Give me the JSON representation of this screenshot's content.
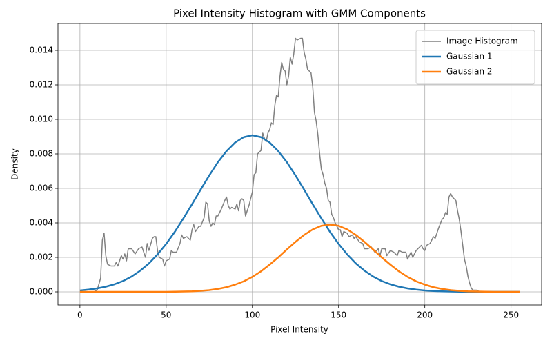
{
  "chart_data": {
    "type": "line",
    "title": "Pixel Intensity Histogram with GMM Components",
    "xlabel": "Pixel Intensity",
    "ylabel": "Density",
    "xlim": [
      -12.75,
      267.75
    ],
    "ylim": [
      -0.00076,
      0.01556
    ],
    "xticks": [
      0,
      50,
      100,
      150,
      200,
      250
    ],
    "yticks": [
      {
        "value": 0,
        "label": "0.000"
      },
      {
        "value": 0.002,
        "label": "0.002"
      },
      {
        "value": 0.004,
        "label": "0.004"
      },
      {
        "value": 0.006,
        "label": "0.006"
      },
      {
        "value": 0.008,
        "label": "0.008"
      },
      {
        "value": 0.01,
        "label": "0.010"
      },
      {
        "value": 0.012,
        "label": "0.012"
      },
      {
        "value": 0.014,
        "label": "0.014"
      }
    ],
    "grid": true,
    "legend": "upper right",
    "series": [
      {
        "name": "Image Histogram",
        "color": "#808080",
        "width": 1.5,
        "x": [
          0,
          8,
          10,
          12,
          13,
          14,
          15,
          16,
          18,
          20,
          21,
          22,
          24,
          25,
          26,
          27,
          28,
          30,
          32,
          34,
          36,
          38,
          39,
          40,
          42,
          43,
          44,
          45,
          46,
          48,
          49,
          50,
          52,
          53,
          54,
          56,
          58,
          59,
          60,
          62,
          64,
          65,
          66,
          67,
          69,
          70,
          72,
          73,
          74,
          75,
          76,
          77,
          78,
          79,
          80,
          82,
          84,
          85,
          86,
          87,
          88,
          90,
          91,
          92,
          93,
          94,
          95,
          96,
          98,
          100,
          101,
          102,
          103,
          104,
          105,
          106,
          107,
          108,
          109,
          110,
          111,
          112,
          113,
          114,
          115,
          116,
          117,
          118,
          119,
          120,
          121,
          122,
          123,
          124,
          125,
          126,
          128,
          129,
          130,
          131,
          132,
          134,
          135,
          136,
          137,
          138,
          139,
          140,
          141,
          142,
          143,
          144,
          145,
          146,
          147,
          148,
          150,
          151,
          152,
          153,
          155,
          156,
          158,
          159,
          160,
          162,
          164,
          165,
          167,
          169,
          171,
          173,
          174,
          175,
          177,
          178,
          180,
          182,
          184,
          185,
          187,
          189,
          190,
          192,
          193,
          195,
          197,
          198,
          199,
          200,
          201,
          203,
          205,
          206,
          208,
          210,
          211,
          212,
          213,
          214,
          215,
          216,
          218,
          219,
          220,
          221,
          222,
          223,
          224,
          225,
          226,
          227,
          228,
          230,
          232
        ],
        "values": [
          0,
          0,
          0.0001,
          0.0008,
          0.003,
          0.0034,
          0.0021,
          0.0016,
          0.0015,
          0.0015,
          0.0017,
          0.0015,
          0.0021,
          0.0019,
          0.0022,
          0.0018,
          0.0025,
          0.0025,
          0.0022,
          0.0025,
          0.0026,
          0.002,
          0.0028,
          0.0024,
          0.0031,
          0.0032,
          0.0032,
          0.0024,
          0.002,
          0.0019,
          0.0015,
          0.0018,
          0.0019,
          0.0024,
          0.0023,
          0.0023,
          0.0028,
          0.0033,
          0.0031,
          0.0032,
          0.003,
          0.0036,
          0.0039,
          0.0035,
          0.0038,
          0.0038,
          0.0043,
          0.0052,
          0.0051,
          0.0041,
          0.0038,
          0.004,
          0.0039,
          0.0044,
          0.0044,
          0.0048,
          0.0053,
          0.0055,
          0.005,
          0.0048,
          0.0049,
          0.0048,
          0.0051,
          0.0047,
          0.0053,
          0.0054,
          0.0053,
          0.0044,
          0.005,
          0.0058,
          0.0068,
          0.0069,
          0.008,
          0.0081,
          0.0082,
          0.0092,
          0.0089,
          0.0087,
          0.0092,
          0.0094,
          0.0098,
          0.0097,
          0.0108,
          0.0114,
          0.0113,
          0.0125,
          0.0133,
          0.0129,
          0.0128,
          0.012,
          0.0125,
          0.0136,
          0.0132,
          0.0138,
          0.0147,
          0.0146,
          0.0147,
          0.0147,
          0.0139,
          0.0135,
          0.0129,
          0.0127,
          0.0119,
          0.0104,
          0.0099,
          0.0091,
          0.008,
          0.0071,
          0.0068,
          0.0063,
          0.006,
          0.0053,
          0.0052,
          0.0045,
          0.0043,
          0.004,
          0.0036,
          0.0036,
          0.0032,
          0.0035,
          0.0034,
          0.0032,
          0.0033,
          0.0031,
          0.0032,
          0.0029,
          0.0028,
          0.0025,
          0.0025,
          0.0026,
          0.0023,
          0.0025,
          0.0021,
          0.0025,
          0.0025,
          0.0021,
          0.0024,
          0.0023,
          0.0021,
          0.0024,
          0.0023,
          0.0023,
          0.0019,
          0.0023,
          0.002,
          0.0024,
          0.0026,
          0.0027,
          0.0025,
          0.0024,
          0.0027,
          0.0028,
          0.0032,
          0.0031,
          0.0037,
          0.0042,
          0.0043,
          0.0046,
          0.0045,
          0.0055,
          0.0057,
          0.0055,
          0.0053,
          0.0047,
          0.0042,
          0.0035,
          0.0027,
          0.0019,
          0.0015,
          0.0009,
          0.0005,
          0.0002,
          0.0001,
          0.0001,
          0
        ]
      },
      {
        "name": "Gaussian 1",
        "color": "#1f77b4",
        "width": 2.5,
        "x": [
          0,
          5,
          10,
          15,
          20,
          25,
          30,
          35,
          40,
          45,
          50,
          55,
          60,
          65,
          70,
          75,
          80,
          85,
          90,
          95,
          100,
          105,
          110,
          115,
          120,
          125,
          130,
          135,
          140,
          145,
          150,
          155,
          160,
          165,
          170,
          175,
          180,
          185,
          190,
          195,
          200,
          205,
          210,
          215,
          220,
          225,
          230,
          235,
          240,
          245,
          250,
          255
        ],
        "values": [
          8e-05,
          0.00013,
          0.0002,
          0.0003,
          0.00044,
          0.00063,
          0.00089,
          0.00123,
          0.00165,
          0.00217,
          0.00278,
          0.00348,
          0.00426,
          0.00508,
          0.00593,
          0.00675,
          0.00752,
          0.00816,
          0.00866,
          0.00897,
          0.00908,
          0.00897,
          0.00866,
          0.00816,
          0.00752,
          0.00675,
          0.00593,
          0.00508,
          0.00426,
          0.00348,
          0.00278,
          0.00217,
          0.00165,
          0.00123,
          0.00089,
          0.00063,
          0.00044,
          0.0003,
          0.0002,
          0.00013,
          8e-05,
          5e-05,
          3e-05,
          2e-05,
          1e-05,
          0,
          0,
          0,
          0,
          0,
          0,
          0
        ]
      },
      {
        "name": "Gaussian 2",
        "color": "#ff7f0e",
        "width": 2.5,
        "x": [
          0,
          5,
          10,
          15,
          20,
          25,
          30,
          35,
          40,
          45,
          50,
          55,
          60,
          65,
          70,
          75,
          80,
          85,
          90,
          95,
          100,
          105,
          110,
          115,
          120,
          125,
          130,
          135,
          140,
          145,
          150,
          155,
          160,
          165,
          170,
          175,
          180,
          185,
          190,
          195,
          200,
          205,
          210,
          215,
          220,
          225,
          230,
          235,
          240,
          245,
          250,
          255
        ],
        "values": [
          0,
          0,
          0,
          0,
          0,
          0,
          0,
          0,
          0,
          0,
          0,
          1e-05,
          2e-05,
          3e-05,
          6e-05,
          0.0001,
          0.00017,
          0.00027,
          0.00042,
          0.00061,
          0.00087,
          0.00119,
          0.00158,
          0.002,
          0.00246,
          0.0029,
          0.0033,
          0.00362,
          0.00383,
          0.0039,
          0.00383,
          0.00362,
          0.0033,
          0.0029,
          0.00246,
          0.002,
          0.00158,
          0.00119,
          0.00087,
          0.00061,
          0.00042,
          0.00027,
          0.00017,
          0.0001,
          6e-05,
          3e-05,
          2e-05,
          1e-05,
          0,
          0,
          0,
          0
        ]
      }
    ]
  }
}
